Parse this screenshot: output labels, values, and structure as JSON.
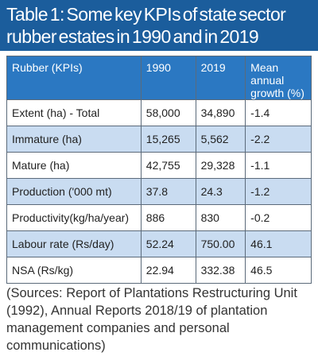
{
  "title_lines": [
    "Table 1: Some key KPIs of state sector",
    "rubber estates in 1990 and in 2019"
  ],
  "table": {
    "header": [
      "Rubber (KPIs)",
      "1990",
      "2019",
      "Mean annual growth (%)"
    ],
    "rows": [
      [
        "Extent (ha) - Total",
        "58,000",
        "34,890",
        "-1.4"
      ],
      [
        "Immature (ha)",
        "15,265",
        "5,562",
        "-2.2"
      ],
      [
        "Mature (ha)",
        "42,755",
        "29,328",
        "-1.1"
      ],
      [
        "Production ('000 mt)",
        "37.8",
        "24.3",
        "-1.2"
      ],
      [
        "Productivity(kg/ha/year)",
        "886",
        "830",
        "-0.2"
      ],
      [
        "Labour rate (Rs/day)",
        "52.24",
        "750.00",
        "46.1"
      ],
      [
        "NSA (Rs/kg)",
        "22.94",
        "332.38",
        "46.5"
      ]
    ]
  },
  "source": "(Sources: Report of Plantations Restructuring Unit (1992), Annual Reports 2018/19 of plantation management companies and personal communications)"
}
